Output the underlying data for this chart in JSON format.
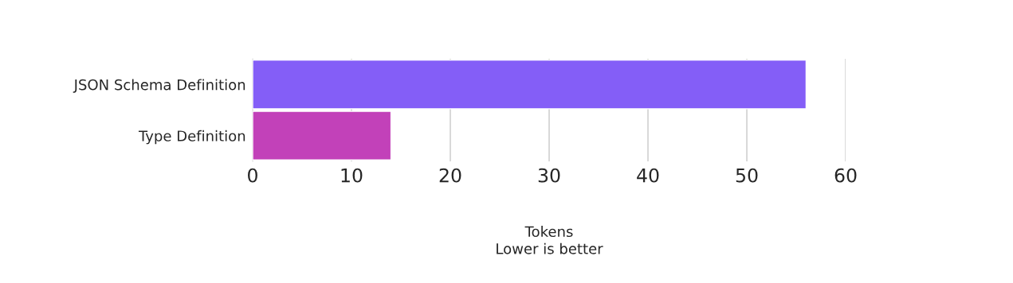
{
  "chart_data": {
    "type": "bar",
    "orientation": "horizontal",
    "categories": [
      "JSON Schema Definition",
      "Type Definition"
    ],
    "values": [
      56,
      14
    ],
    "colors": [
      "#845ef7",
      "#c241b9"
    ],
    "xlim": [
      0,
      60
    ],
    "xticks": [
      0,
      10,
      20,
      30,
      40,
      50,
      60
    ],
    "xlabel": "Tokens\nLower is better",
    "grid": "x",
    "legend": false
  }
}
